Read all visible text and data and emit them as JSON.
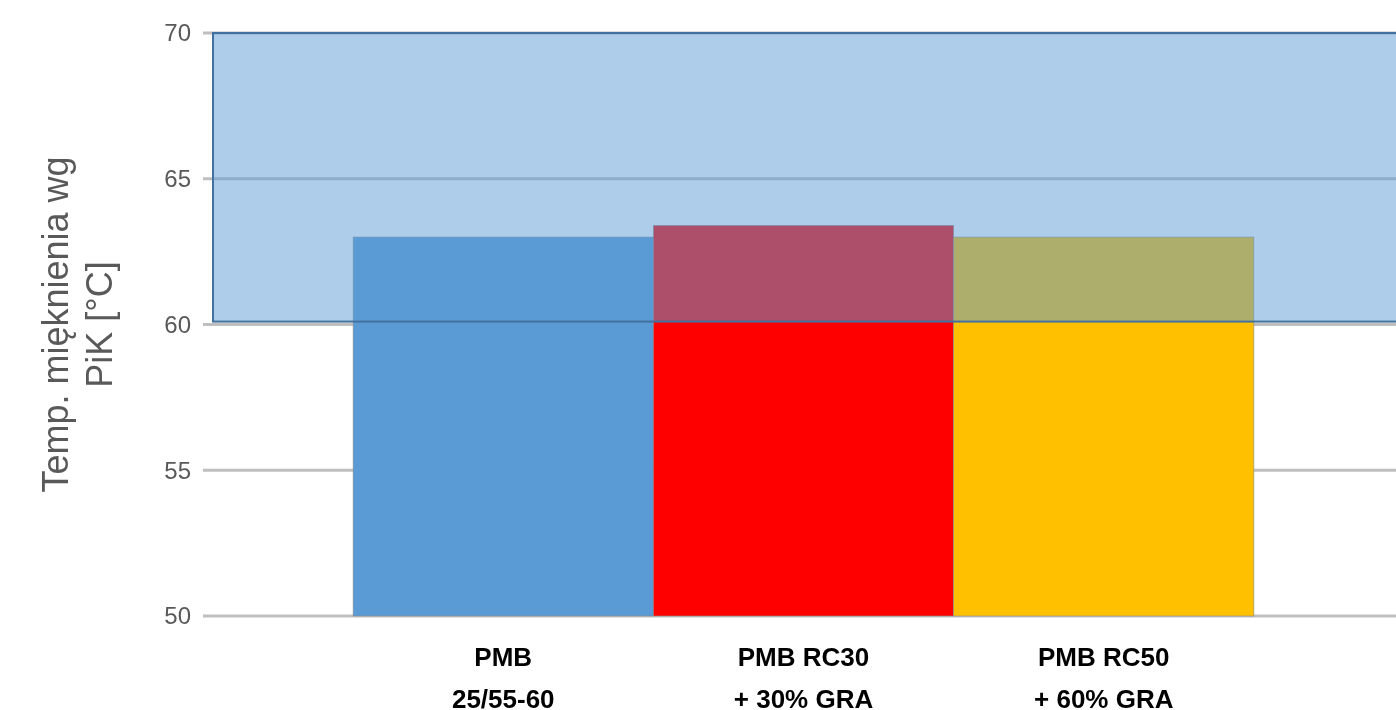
{
  "chart_data": {
    "type": "bar",
    "ylabel": "Temp. mięknienia wg\nPiK [°C]",
    "categories": [
      "PMB\n25/55-60",
      "PMB RC30\n+ 30% GRA",
      "PMB RC50\n+ 60% GRA"
    ],
    "values": [
      63.0,
      63.4,
      63.0
    ],
    "colors": [
      "#5b9bd5",
      "#ff0000",
      "#ffc000"
    ],
    "ylim": [
      50,
      70
    ],
    "yticks": [
      50,
      55,
      60,
      65,
      70
    ],
    "grid": "y",
    "bands": [
      {
        "axis": "y",
        "from": 60.1,
        "to": 70,
        "color": "#5b9bd5"
      }
    ]
  }
}
